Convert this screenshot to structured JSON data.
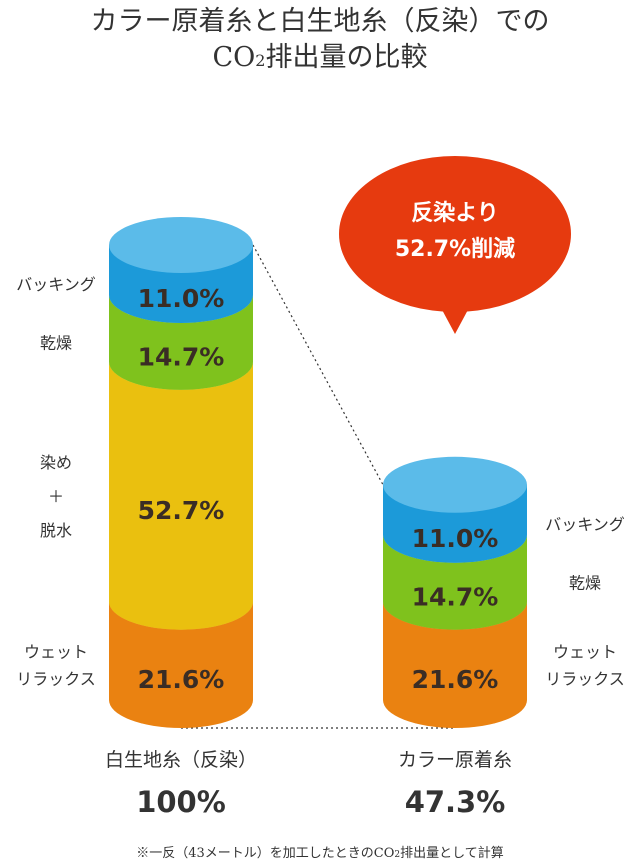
{
  "chart_data": {
    "type": "bar",
    "stacked": true,
    "title_line1": "カラー原着糸と白生地糸（反染）での",
    "title_line2_pre": "CO",
    "title_line2_sub": "2",
    "title_line2_post": "排出量の比較",
    "categories": [
      "白生地糸（反染）",
      "カラー原着糸"
    ],
    "totals": [
      "100%",
      "47.3%"
    ],
    "series": [
      {
        "name": "ウェット\nリラックス",
        "label_lines": [
          "ウェット",
          "リラックス"
        ],
        "values": [
          21.6,
          21.6
        ],
        "labels": [
          "21.6%",
          "21.6%"
        ],
        "side_color": "#ea8211",
        "top_color": "#efa85a"
      },
      {
        "name": "染め＋脱水",
        "label_lines": [
          "染め",
          "＋",
          "脱水"
        ],
        "values": [
          52.7,
          0
        ],
        "labels": [
          "52.7%",
          ""
        ],
        "side_color": "#eac00f",
        "top_color": "#f2de7d"
      },
      {
        "name": "乾燥",
        "label_lines": [
          "乾燥"
        ],
        "values": [
          14.7,
          14.7
        ],
        "labels": [
          "14.7%",
          "14.7%"
        ],
        "side_color": "#7fc21d",
        "top_color": "#c6e48f"
      },
      {
        "name": "バッキング",
        "label_lines": [
          "バッキング"
        ],
        "values": [
          11.0,
          11.0
        ],
        "labels": [
          "11.0%",
          "11.0%"
        ],
        "side_color": "#1c9ad9",
        "top_color": "#5bbbe9"
      }
    ],
    "annotation": [
      "反染より",
      "52.7%削減"
    ],
    "annotation_color": "#e63a0f",
    "footnote_pre": "※一反（43メートル）を加工したときのCO",
    "footnote_sub": "2",
    "footnote_post": "排出量として計算"
  }
}
